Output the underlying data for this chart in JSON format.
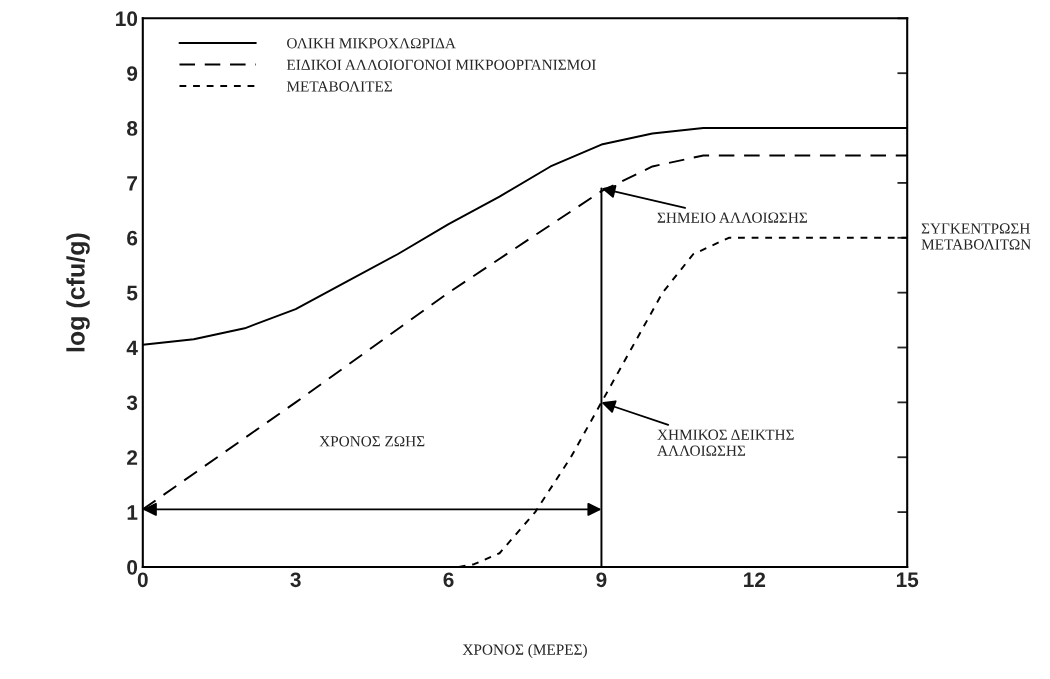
{
  "chart_data": {
    "type": "line",
    "xlabel": "ΧΡΟΝΟΣ (ΜΕΡΕΣ)",
    "ylabel": "log (cfu/g)",
    "xlim": [
      0,
      15
    ],
    "ylim": [
      0,
      10
    ],
    "xticks": [
      0,
      3,
      6,
      9,
      12,
      15
    ],
    "yticks": [
      0,
      1,
      2,
      3,
      4,
      5,
      6,
      7,
      8,
      9,
      10
    ],
    "grid": false,
    "legend": "top left",
    "series": [
      {
        "name": "ΟΛΙΚΗ ΜΙΚΡΟΧΛΩΡΙΔΑ",
        "color": "#000000",
        "line_style": "solid",
        "x": [
          0,
          1,
          2,
          3,
          4,
          5,
          6,
          7,
          8,
          9,
          10,
          11,
          12,
          13,
          14,
          15
        ],
        "values": [
          4.05,
          4.15,
          4.35,
          4.7,
          5.2,
          5.7,
          6.25,
          6.75,
          7.3,
          7.7,
          7.9,
          8.0,
          8.0,
          8.0,
          8.0,
          8.0
        ]
      },
      {
        "name": "ΕΙΔΙΚΟΙ ΑΛΛΟΙΟΓΟΝΟΙ ΜΙΚΡΟΟΡΓΑΝΙΣΜΟΙ",
        "color": "#000000",
        "line_style": "dashed",
        "x": [
          0,
          3,
          6,
          9,
          10,
          11,
          12,
          13,
          14,
          15
        ],
        "values": [
          1.05,
          3.0,
          5.0,
          6.85,
          7.3,
          7.5,
          7.5,
          7.5,
          7.5,
          7.5
        ]
      },
      {
        "name": "ΜΕΤΑΒΟΛΙΤΕΣ",
        "color": "#000000",
        "line_style": "dotted",
        "x": [
          6.2,
          6.5,
          7,
          7.7,
          8.4,
          9,
          9.6,
          10.2,
          10.8,
          11.5,
          12,
          13,
          14,
          15
        ],
        "values": [
          0,
          0.05,
          0.25,
          1,
          2,
          3,
          4,
          5,
          5.7,
          6,
          6,
          6,
          6,
          6
        ]
      },
      {
        "color": "#000000",
        "line_style": "solid",
        "x": [
          9,
          9
        ],
        "values": [
          0,
          6.9
        ]
      }
    ],
    "annotations": [
      {
        "text": "ΣΗΜΕΙΟ ΑΛΛΟΙΩΣΗΣ",
        "x": 9,
        "y": 6.9
      },
      {
        "text": "ΧΗΜΙΚΟΣ ΔΕΙΚΤΗΣ\nΑΛΛΟΙΩΣΗΣ",
        "x": 9,
        "y": 3
      },
      "ΣΥΓΚΕΝΤΡΩΣΗ\nΜΕΤΑΒΟΛΙΤΩΝ",
      "ΧΡΟΝΟΣ ΖΩΗΣ"
    ]
  }
}
